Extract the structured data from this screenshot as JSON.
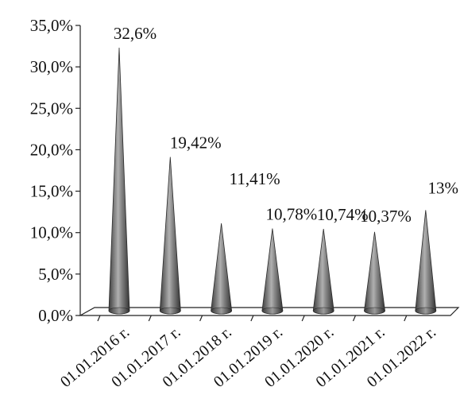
{
  "chart_data": {
    "type": "bar",
    "style": "3d-cone",
    "categories": [
      "01.01.2016 г.",
      "01.01.2017 г.",
      "01.01.2018 г.",
      "01.01.2019 г.",
      "01.01.2020 г.",
      "01.01.2021 г.",
      "01.01.2022 г."
    ],
    "values": [
      32.6,
      19.42,
      11.41,
      10.78,
      10.74,
      10.37,
      13
    ],
    "data_labels": [
      "32,6%",
      "19,42%",
      "11,41%",
      "10,78%",
      "10,74%",
      "10,37%",
      "13%"
    ],
    "yticks": [
      "0,0%",
      "5,0%",
      "10,0%",
      "15,0%",
      "20,0%",
      "25,0%",
      "30,0%",
      "35,0%"
    ],
    "ylim": [
      0,
      35
    ],
    "grid": false,
    "legend": "none",
    "colors": {
      "cone_dark": "#4a4a4a",
      "cone_mid": "#9a9a9a",
      "cone_light": "#d0d0d0",
      "axis": "#222222"
    }
  }
}
